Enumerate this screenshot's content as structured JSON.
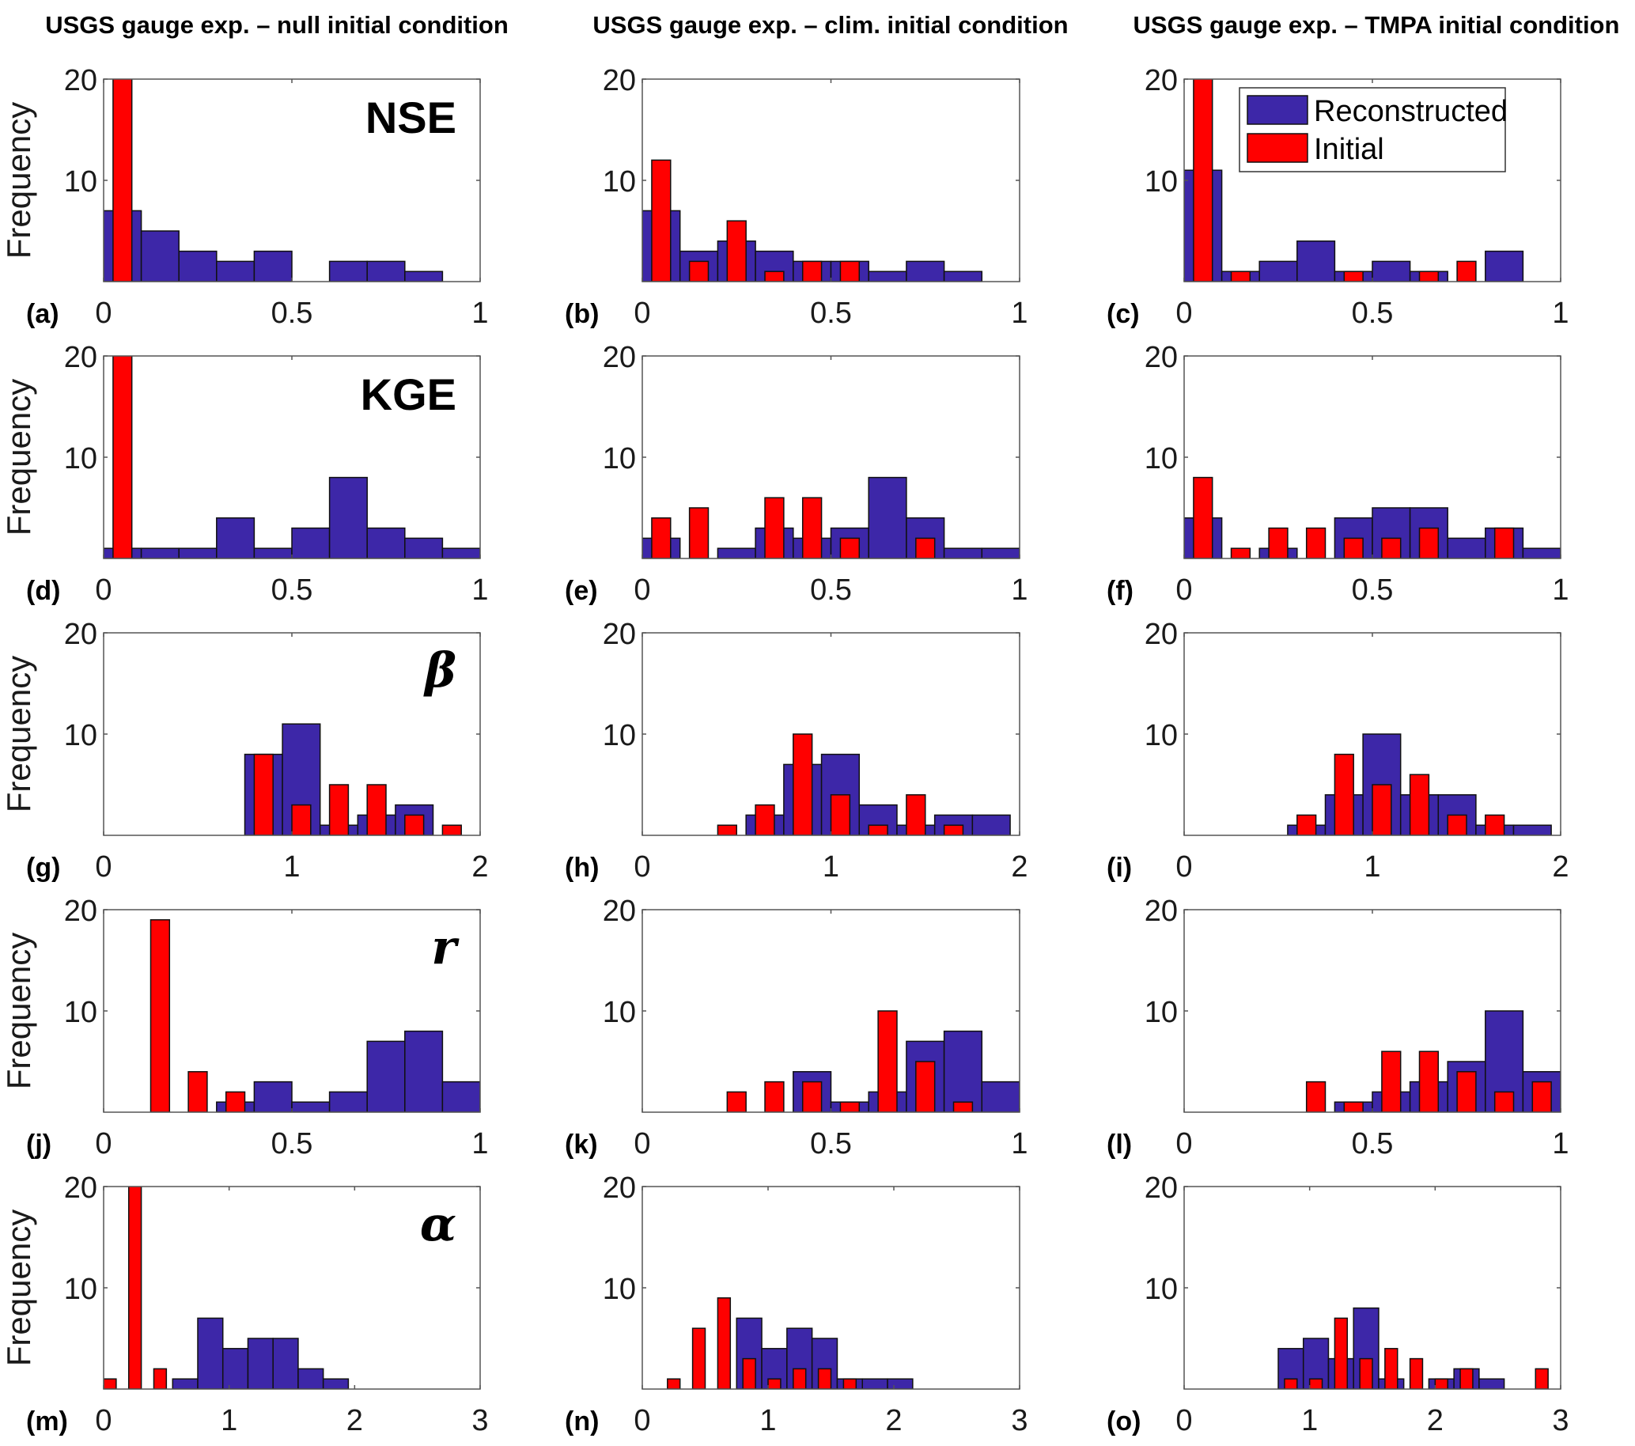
{
  "colors": {
    "reconstructed": "#3d27a8",
    "initial": "#ff0000",
    "edge": "#111111",
    "axis": "#555555"
  },
  "chart_data": {
    "type": "bar",
    "description": "3x5 grid of overlaid frequency histograms (Reconstructed vs Initial)",
    "columns": [
      "USGS gauge exp. – null initial condition",
      "USGS gauge exp. – clim. initial condition",
      "USGS gauge exp. – TMPA initial condition"
    ],
    "ylabel": "Frequency",
    "ylim": [
      0,
      20
    ],
    "yticks": [
      "10",
      "20"
    ],
    "legend": {
      "placement": "top-right of panel (c)",
      "entries": [
        {
          "key": "reconstructed",
          "label": "Reconstructed"
        },
        {
          "key": "initial",
          "label": "Initial"
        }
      ]
    },
    "rows": [
      {
        "metric": "NSE",
        "metric_style": "bold",
        "xlim": [
          0,
          1
        ],
        "xticks": [
          "0",
          "0.5",
          "1"
        ],
        "recon_bin_width": 0.1,
        "initial_bar_width": 0.05,
        "panels": [
          {
            "letter": "(a)",
            "reconstructed": {
              "start": 0.0,
              "counts": [
                7,
                5,
                3,
                2,
                3,
                0,
                2,
                2,
                1
              ]
            },
            "initial": [
              {
                "x": 0.05,
                "y": 20
              }
            ]
          },
          {
            "letter": "(b)",
            "reconstructed": {
              "start": 0.0,
              "counts": [
                7,
                3,
                4,
                3,
                2,
                2,
                1,
                2,
                1
              ]
            },
            "initial": [
              {
                "x": 0.05,
                "y": 12
              },
              {
                "x": 0.15,
                "y": 2
              },
              {
                "x": 0.25,
                "y": 6
              },
              {
                "x": 0.35,
                "y": 1
              },
              {
                "x": 0.45,
                "y": 2
              },
              {
                "x": 0.55,
                "y": 2
              }
            ]
          },
          {
            "letter": "(c)",
            "reconstructed": {
              "start": 0.0,
              "counts": [
                11,
                1,
                2,
                4,
                1,
                2,
                1,
                0,
                3
              ]
            },
            "initial": [
              {
                "x": 0.05,
                "y": 20
              },
              {
                "x": 0.15,
                "y": 1
              },
              {
                "x": 0.45,
                "y": 1
              },
              {
                "x": 0.65,
                "y": 1
              },
              {
                "x": 0.75,
                "y": 2
              }
            ]
          }
        ]
      },
      {
        "metric": "KGE",
        "metric_style": "bold",
        "xlim": [
          0,
          1
        ],
        "xticks": [
          "0",
          "0.5",
          "1"
        ],
        "recon_bin_width": 0.1,
        "initial_bar_width": 0.05,
        "panels": [
          {
            "letter": "(d)",
            "reconstructed": {
              "start": 0.0,
              "counts": [
                1,
                1,
                1,
                4,
                1,
                3,
                8,
                3,
                2,
                1
              ]
            },
            "initial": [
              {
                "x": 0.05,
                "y": 20
              }
            ]
          },
          {
            "letter": "(e)",
            "reconstructed": {
              "start": 0.0,
              "counts": [
                2,
                0,
                1,
                3,
                2,
                3,
                8,
                4,
                1,
                1
              ]
            },
            "initial": [
              {
                "x": 0.05,
                "y": 4
              },
              {
                "x": 0.15,
                "y": 5
              },
              {
                "x": 0.35,
                "y": 6
              },
              {
                "x": 0.45,
                "y": 6
              },
              {
                "x": 0.55,
                "y": 2
              },
              {
                "x": 0.75,
                "y": 2
              }
            ]
          },
          {
            "letter": "(f)",
            "reconstructed": {
              "start": 0.0,
              "counts": [
                4,
                0,
                1,
                0,
                4,
                5,
                5,
                2,
                3,
                1
              ]
            },
            "initial": [
              {
                "x": 0.05,
                "y": 8
              },
              {
                "x": 0.15,
                "y": 1
              },
              {
                "x": 0.25,
                "y": 3
              },
              {
                "x": 0.35,
                "y": 3
              },
              {
                "x": 0.45,
                "y": 2
              },
              {
                "x": 0.55,
                "y": 2
              },
              {
                "x": 0.65,
                "y": 3
              },
              {
                "x": 0.85,
                "y": 3
              }
            ]
          }
        ]
      },
      {
        "metric": "β",
        "metric_style": "greek",
        "xlim": [
          0,
          2
        ],
        "xticks": [
          "0",
          "1",
          "2"
        ],
        "recon_bin_width": 0.2,
        "initial_bar_width": 0.1,
        "panels": [
          {
            "letter": "(g)",
            "reconstructed": {
              "start": 0.75,
              "counts": [
                8,
                11,
                1,
                2,
                3
              ]
            },
            "initial": [
              {
                "x": 0.85,
                "y": 8
              },
              {
                "x": 1.05,
                "y": 3
              },
              {
                "x": 1.25,
                "y": 5
              },
              {
                "x": 1.45,
                "y": 5
              },
              {
                "x": 1.65,
                "y": 2
              },
              {
                "x": 1.85,
                "y": 1
              }
            ]
          },
          {
            "letter": "(h)",
            "reconstructed": {
              "start": 0.55,
              "counts": [
                2,
                7,
                8,
                3,
                1,
                2,
                2
              ]
            },
            "initial": [
              {
                "x": 0.45,
                "y": 1
              },
              {
                "x": 0.65,
                "y": 3
              },
              {
                "x": 0.85,
                "y": 10
              },
              {
                "x": 1.05,
                "y": 4
              },
              {
                "x": 1.25,
                "y": 1
              },
              {
                "x": 1.45,
                "y": 4
              },
              {
                "x": 1.65,
                "y": 1
              }
            ]
          },
          {
            "letter": "(i)",
            "reconstructed": {
              "start": 0.55,
              "counts": [
                1,
                4,
                10,
                4,
                4,
                1,
                1
              ]
            },
            "initial": [
              {
                "x": 0.65,
                "y": 2
              },
              {
                "x": 0.85,
                "y": 8
              },
              {
                "x": 1.05,
                "y": 5
              },
              {
                "x": 1.25,
                "y": 6
              },
              {
                "x": 1.45,
                "y": 2
              },
              {
                "x": 1.65,
                "y": 2
              }
            ]
          }
        ]
      },
      {
        "metric": "r",
        "metric_style": "greek",
        "xlim": [
          0,
          1
        ],
        "xticks": [
          "0",
          "0.5",
          "1"
        ],
        "recon_bin_width": 0.1,
        "initial_bar_width": 0.05,
        "panels": [
          {
            "letter": "(j)",
            "reconstructed": {
              "start": 0.3,
              "counts": [
                1,
                3,
                1,
                2,
                7,
                8,
                3
              ]
            },
            "initial": [
              {
                "x": 0.15,
                "y": 19
              },
              {
                "x": 0.25,
                "y": 4
              },
              {
                "x": 0.35,
                "y": 2
              }
            ]
          },
          {
            "letter": "(k)",
            "reconstructed": {
              "start": 0.4,
              "counts": [
                4,
                1,
                2,
                7,
                8,
                3
              ]
            },
            "initial": [
              {
                "x": 0.25,
                "y": 2
              },
              {
                "x": 0.35,
                "y": 3
              },
              {
                "x": 0.45,
                "y": 3
              },
              {
                "x": 0.55,
                "y": 1
              },
              {
                "x": 0.65,
                "y": 10
              },
              {
                "x": 0.75,
                "y": 5
              },
              {
                "x": 0.85,
                "y": 1
              }
            ]
          },
          {
            "letter": "(l)",
            "reconstructed": {
              "start": 0.4,
              "counts": [
                1,
                2,
                3,
                5,
                10,
                4
              ]
            },
            "initial": [
              {
                "x": 0.35,
                "y": 3
              },
              {
                "x": 0.45,
                "y": 1
              },
              {
                "x": 0.55,
                "y": 6
              },
              {
                "x": 0.65,
                "y": 6
              },
              {
                "x": 0.75,
                "y": 4
              },
              {
                "x": 0.85,
                "y": 2
              },
              {
                "x": 0.95,
                "y": 3
              }
            ]
          }
        ]
      },
      {
        "metric": "α",
        "metric_style": "greek",
        "xlim": [
          0,
          3
        ],
        "xticks": [
          "0",
          "1",
          "2",
          "3"
        ],
        "recon_bin_width": 0.2,
        "initial_bar_width": 0.1,
        "panels": [
          {
            "letter": "(m)",
            "reconstructed": {
              "start": 0.55,
              "counts": [
                1,
                7,
                4,
                5,
                5,
                2,
                1
              ]
            },
            "initial": [
              {
                "x": 0.05,
                "y": 1
              },
              {
                "x": 0.25,
                "y": 20
              },
              {
                "x": 0.45,
                "y": 2
              }
            ]
          },
          {
            "letter": "(n)",
            "reconstructed": {
              "start": 0.75,
              "counts": [
                7,
                4,
                6,
                5,
                1,
                1,
                1
              ]
            },
            "initial": [
              {
                "x": 0.25,
                "y": 1
              },
              {
                "x": 0.45,
                "y": 6
              },
              {
                "x": 0.65,
                "y": 9
              },
              {
                "x": 0.85,
                "y": 3
              },
              {
                "x": 1.05,
                "y": 1
              },
              {
                "x": 1.25,
                "y": 2
              },
              {
                "x": 1.45,
                "y": 2
              },
              {
                "x": 1.65,
                "y": 1
              }
            ]
          },
          {
            "letter": "(o)",
            "reconstructed": {
              "start": 0.75,
              "counts": [
                4,
                5,
                3,
                8,
                1,
                0,
                1,
                2,
                1
              ]
            },
            "initial": [
              {
                "x": 0.85,
                "y": 1
              },
              {
                "x": 1.05,
                "y": 1
              },
              {
                "x": 1.25,
                "y": 7
              },
              {
                "x": 1.45,
                "y": 3
              },
              {
                "x": 1.65,
                "y": 4
              },
              {
                "x": 1.85,
                "y": 3
              },
              {
                "x": 2.05,
                "y": 1
              },
              {
                "x": 2.25,
                "y": 2
              },
              {
                "x": 2.85,
                "y": 2
              }
            ]
          }
        ]
      }
    ]
  }
}
